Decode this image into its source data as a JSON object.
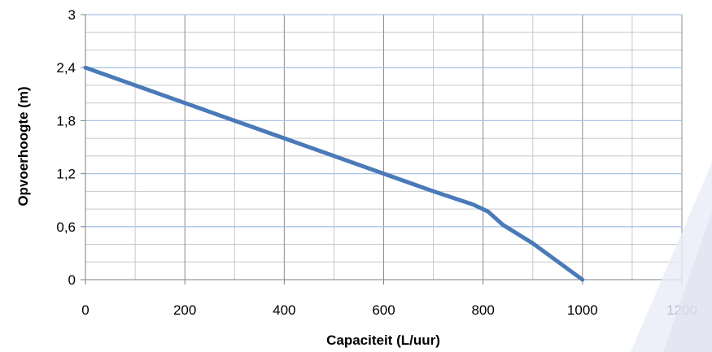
{
  "chart_data": {
    "type": "line",
    "xlabel": "Capaciteit (L/uur)",
    "ylabel": "Opvoerhoogte (m)",
    "xlim": [
      0,
      1200
    ],
    "ylim": [
      0,
      3
    ],
    "x_ticks": [
      0,
      200,
      400,
      600,
      800,
      1000,
      1200
    ],
    "x_tick_labels": [
      "0",
      "200",
      "400",
      "600",
      "800",
      "1000",
      "1200"
    ],
    "x_minor_ticks": [
      100,
      300,
      500,
      700,
      900,
      1100
    ],
    "y_ticks": [
      0,
      0.6,
      1.2,
      1.8,
      2.4,
      3
    ],
    "y_tick_labels": [
      "0",
      "0,6",
      "1,2",
      "1,8",
      "2,4",
      "3"
    ],
    "y_minor_ticks": [
      0.2,
      0.4,
      0.8,
      1.0,
      1.4,
      1.6,
      2.0,
      2.2,
      2.6,
      2.8
    ],
    "grid": true,
    "legend": "none",
    "series": [
      {
        "color": "#4a7ab8",
        "x": [
          0,
          200,
          400,
          600,
          700,
          780,
          810,
          840,
          900,
          1000
        ],
        "y": [
          2.4,
          2.0,
          1.6,
          1.2,
          1.0,
          0.85,
          0.77,
          0.62,
          0.41,
          0.0
        ]
      }
    ],
    "colors": {
      "major_grid_y": "#a9c4e4",
      "major_grid_x": "#8c8c8c",
      "minor_grid": "#c8c8c8",
      "axis": "#7f7f7f"
    }
  }
}
